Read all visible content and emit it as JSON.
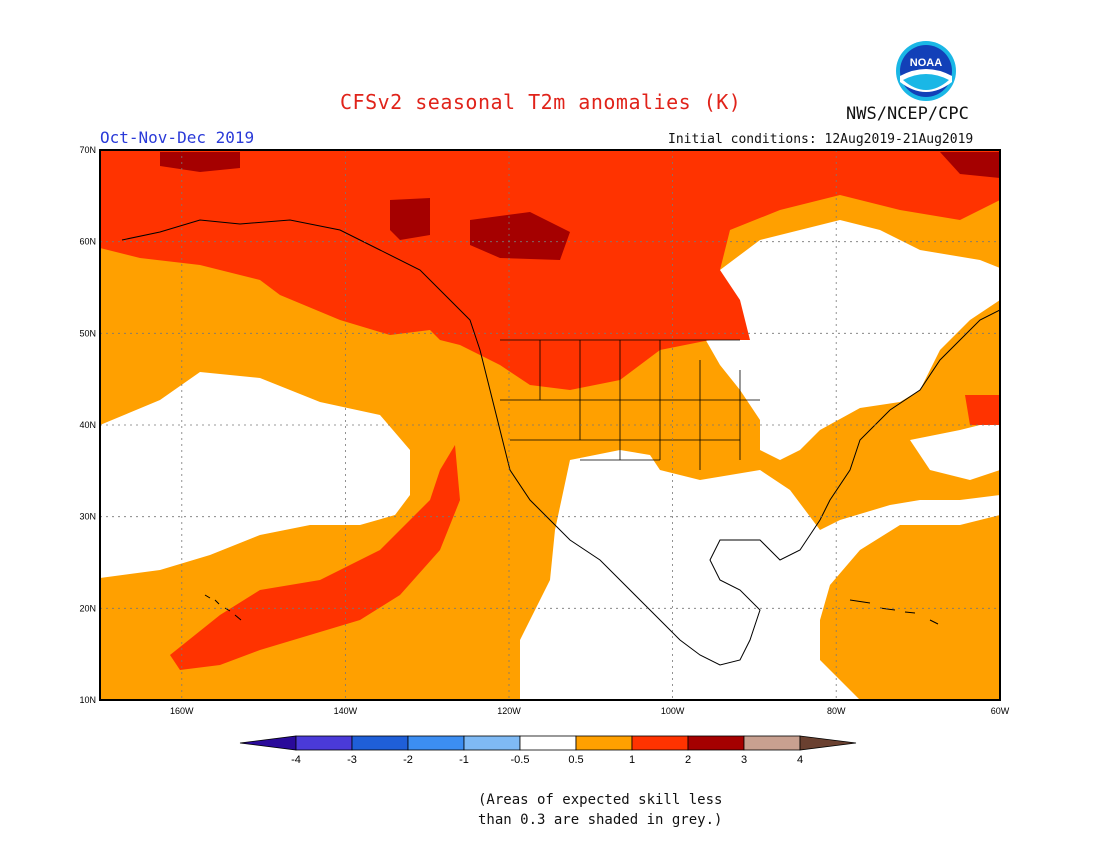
{
  "title": "CFSv2 seasonal T2m anomalies (K)",
  "season": "Oct-Nov-Dec 2019",
  "agency": "NWS/NCEP/CPC",
  "initial_conditions": "Initial conditions: 12Aug2019-21Aug2019",
  "logo_text": "NOAA",
  "lat_labels": [
    "70N",
    "60N",
    "50N",
    "40N",
    "30N",
    "20N",
    "10N"
  ],
  "lon_labels": [
    "160W",
    "140W",
    "120W",
    "100W",
    "80W",
    "60W"
  ],
  "colorbar": {
    "labels": [
      "-4",
      "-3",
      "-2",
      "-1",
      "-0.5",
      "0.5",
      "1",
      "2",
      "3",
      "4"
    ],
    "colors": [
      "#2a0a9a",
      "#4a3ad8",
      "#1f5fd8",
      "#3c8ef2",
      "#7fbaf5",
      "#ffffff",
      "#ffa000",
      "#ff3300",
      "#a50000",
      "#c8a090",
      "#6a4030"
    ]
  },
  "colors": {
    "anomaly_05_1": "#ffa000",
    "anomaly_1_2": "#ff3300",
    "anomaly_2_3": "#a50000",
    "land_outline": "#000000",
    "title": "#e0231a",
    "season": "#2a3ad8"
  },
  "footnote": [
    "(Areas of expected skill less",
    "than 0.3 are shaded in grey.)"
  ]
}
